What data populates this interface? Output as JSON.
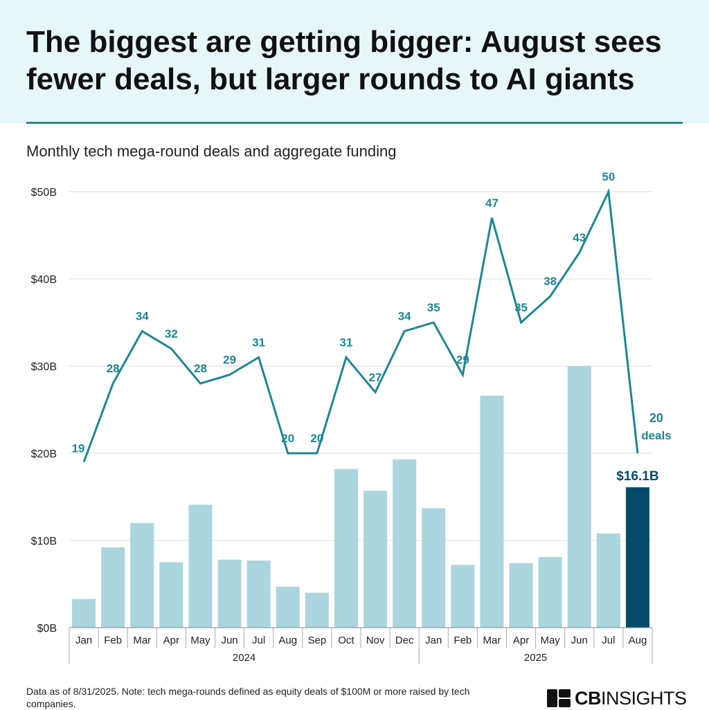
{
  "header": {
    "title": "The biggest are getting bigger: August sees fewer deals, but larger rounds to AI giants",
    "subtitle": "Monthly tech mega-round deals and aggregate funding"
  },
  "footnote": "Data as of 8/31/2025. Note: tech mega-rounds defined as equity deals of $100M or more raised by tech companies.",
  "logo": {
    "bold": "CB",
    "thin": "INSIGHTS"
  },
  "colors": {
    "bar": "#abd5df",
    "bar_highlight": "#064a6a",
    "line": "#1e8691",
    "grid": "#dedede",
    "label": "#1e8691",
    "highlight_label": "#064a6a"
  },
  "chart_data": {
    "type": "bar",
    "categories": [
      "Jan",
      "Feb",
      "Mar",
      "Apr",
      "May",
      "Jun",
      "Jul",
      "Aug",
      "Sep",
      "Oct",
      "Nov",
      "Dec",
      "Jan",
      "Feb",
      "Mar",
      "Apr",
      "May",
      "Jun",
      "Jul",
      "Aug"
    ],
    "groups": [
      {
        "label": "2024",
        "start": 0,
        "end": 11
      },
      {
        "label": "2025",
        "start": 12,
        "end": 19
      }
    ],
    "series": [
      {
        "type": "bar",
        "values": [
          3.3,
          9.2,
          12.0,
          7.5,
          14.1,
          7.8,
          7.7,
          4.7,
          4.0,
          18.2,
          15.7,
          19.3,
          13.7,
          7.2,
          26.6,
          7.4,
          8.1,
          30.0,
          10.8,
          16.1
        ],
        "highlight_index": 19,
        "highlight_label": "$16.1B"
      },
      {
        "type": "line",
        "values": [
          19,
          28,
          34,
          32,
          28,
          29,
          31,
          20,
          20,
          31,
          27,
          34,
          35,
          29,
          47,
          35,
          38,
          43,
          50,
          20
        ],
        "last_label_suffix": "deals"
      }
    ],
    "yticks": [
      "$0B",
      "$10B",
      "$20B",
      "$30B",
      "$40B",
      "$50B"
    ],
    "ylim": [
      0,
      50
    ],
    "grid": true
  }
}
